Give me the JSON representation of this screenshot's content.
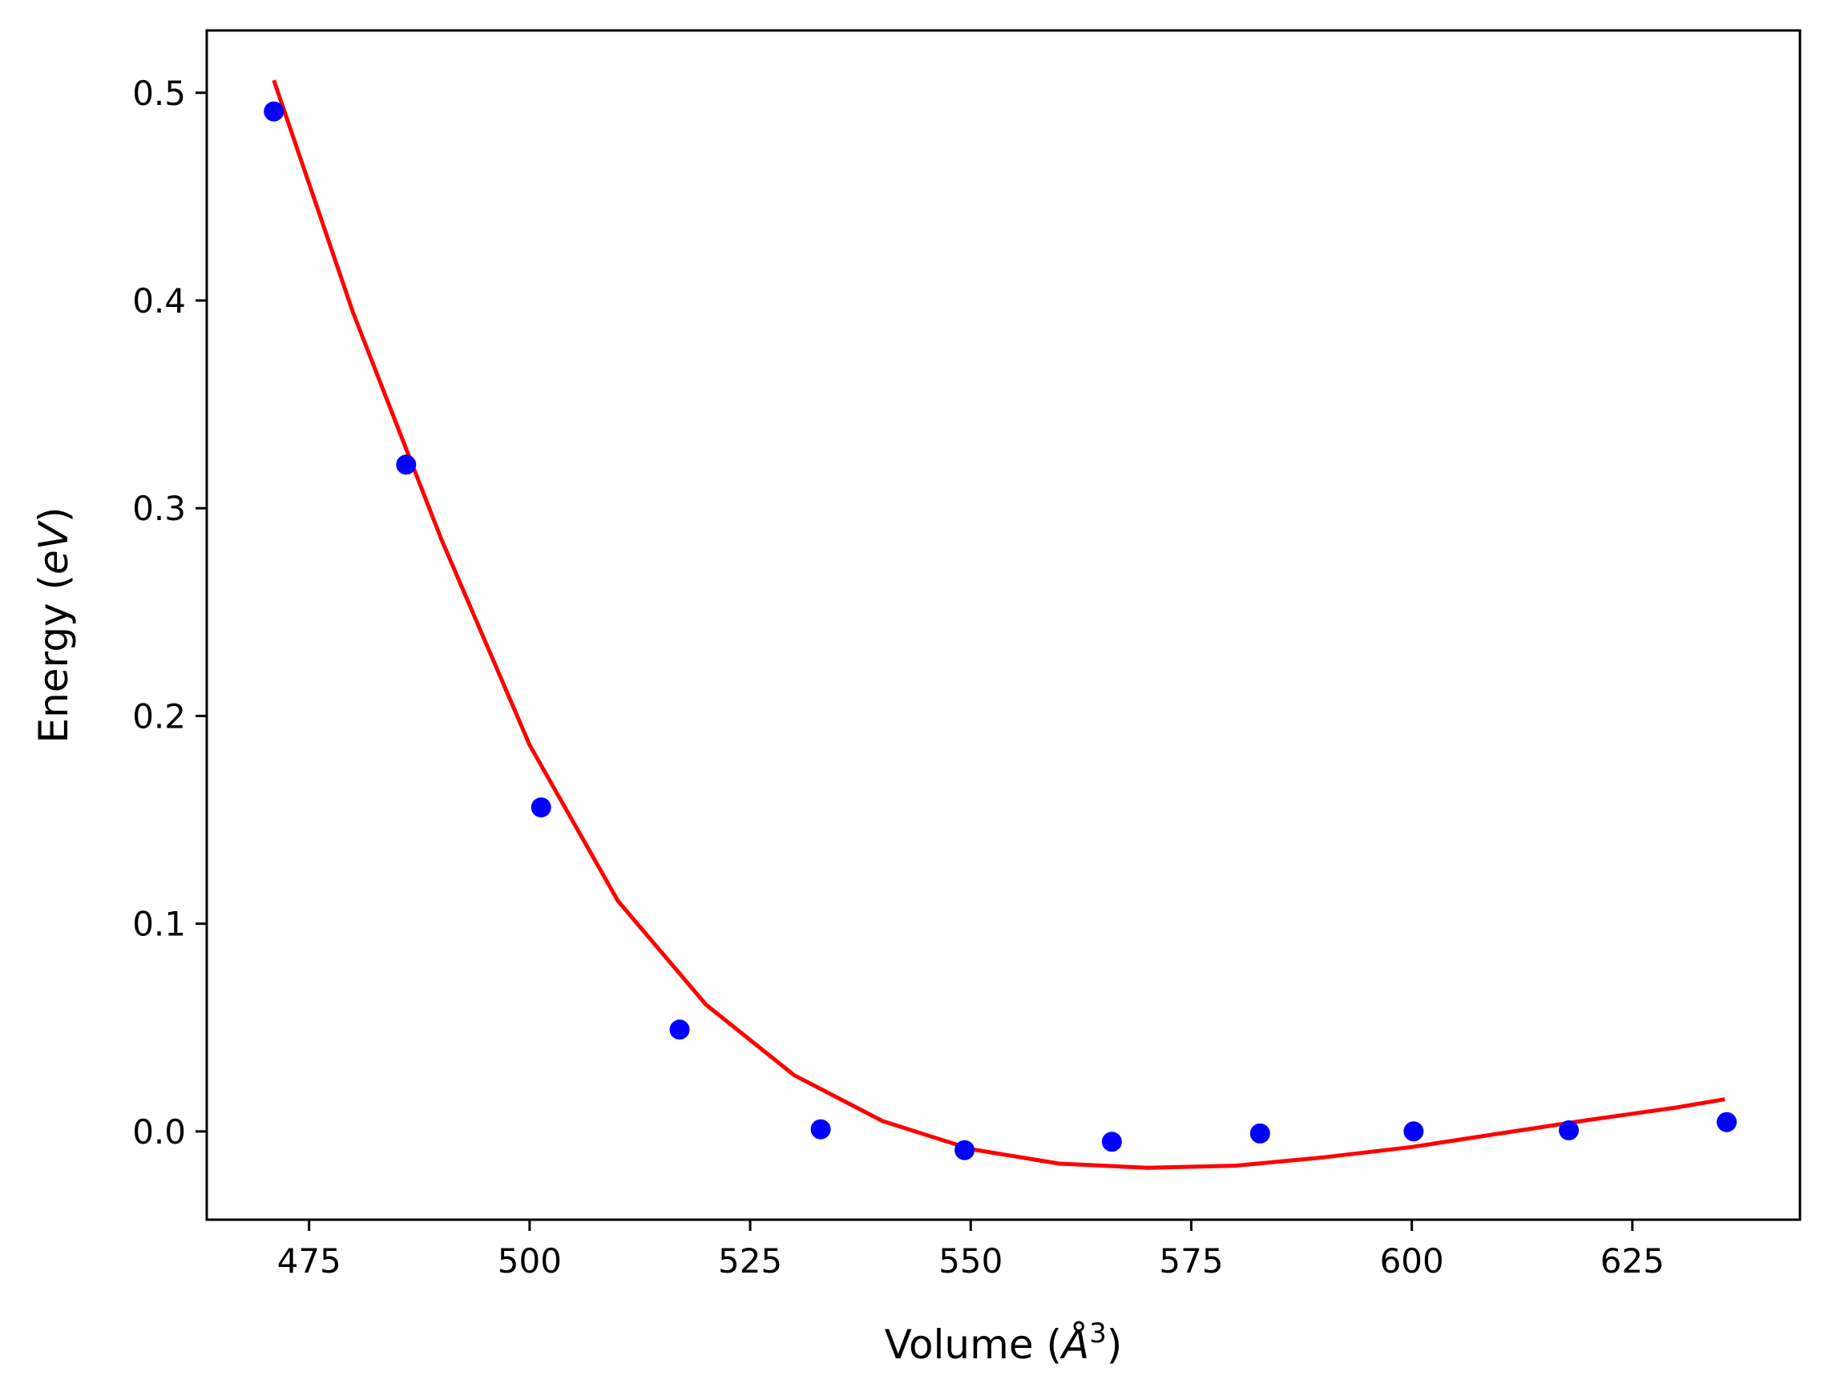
{
  "chart_data": {
    "type": "scatter",
    "title": "",
    "xlabel": "Volume",
    "xlabel_unit_base": "Å",
    "xlabel_unit_exp": "3",
    "ylabel": "Energy",
    "ylabel_unit": "eV",
    "xlim": [
      463.4,
      644.0
    ],
    "ylim": [
      -0.0425,
      0.53
    ],
    "xticks": [
      475,
      500,
      525,
      550,
      575,
      600,
      625
    ],
    "xtick_labels": [
      "475",
      "500",
      "525",
      "550",
      "575",
      "600",
      "625"
    ],
    "yticks": [
      0.0,
      0.1,
      0.2,
      0.3,
      0.4,
      0.5
    ],
    "ytick_labels": [
      "0.0",
      "0.1",
      "0.2",
      "0.3",
      "0.4",
      "0.5"
    ],
    "grid": false,
    "legend": "none",
    "series": [
      {
        "kind": "points",
        "color": "#0000ff",
        "x": [
          471.0,
          486.0,
          501.3,
          517.0,
          533.0,
          549.3,
          566.0,
          582.8,
          600.2,
          617.8,
          635.7
        ],
        "y": [
          0.491,
          0.321,
          0.156,
          0.049,
          0.001,
          -0.009,
          -0.005,
          -0.001,
          0.0,
          0.0005,
          0.0045
        ]
      },
      {
        "kind": "line",
        "color": "#ff0000",
        "x": [
          471,
          480,
          490,
          500,
          510,
          520,
          530,
          540,
          550,
          560,
          570,
          580,
          590,
          600,
          610,
          620,
          630,
          635.5
        ],
        "y": [
          0.506,
          0.394,
          0.285,
          0.186,
          0.111,
          0.061,
          0.027,
          0.005,
          -0.0085,
          -0.0155,
          -0.0175,
          -0.0165,
          -0.0125,
          -0.0075,
          -0.001,
          0.0055,
          0.0115,
          0.0155
        ]
      }
    ]
  }
}
